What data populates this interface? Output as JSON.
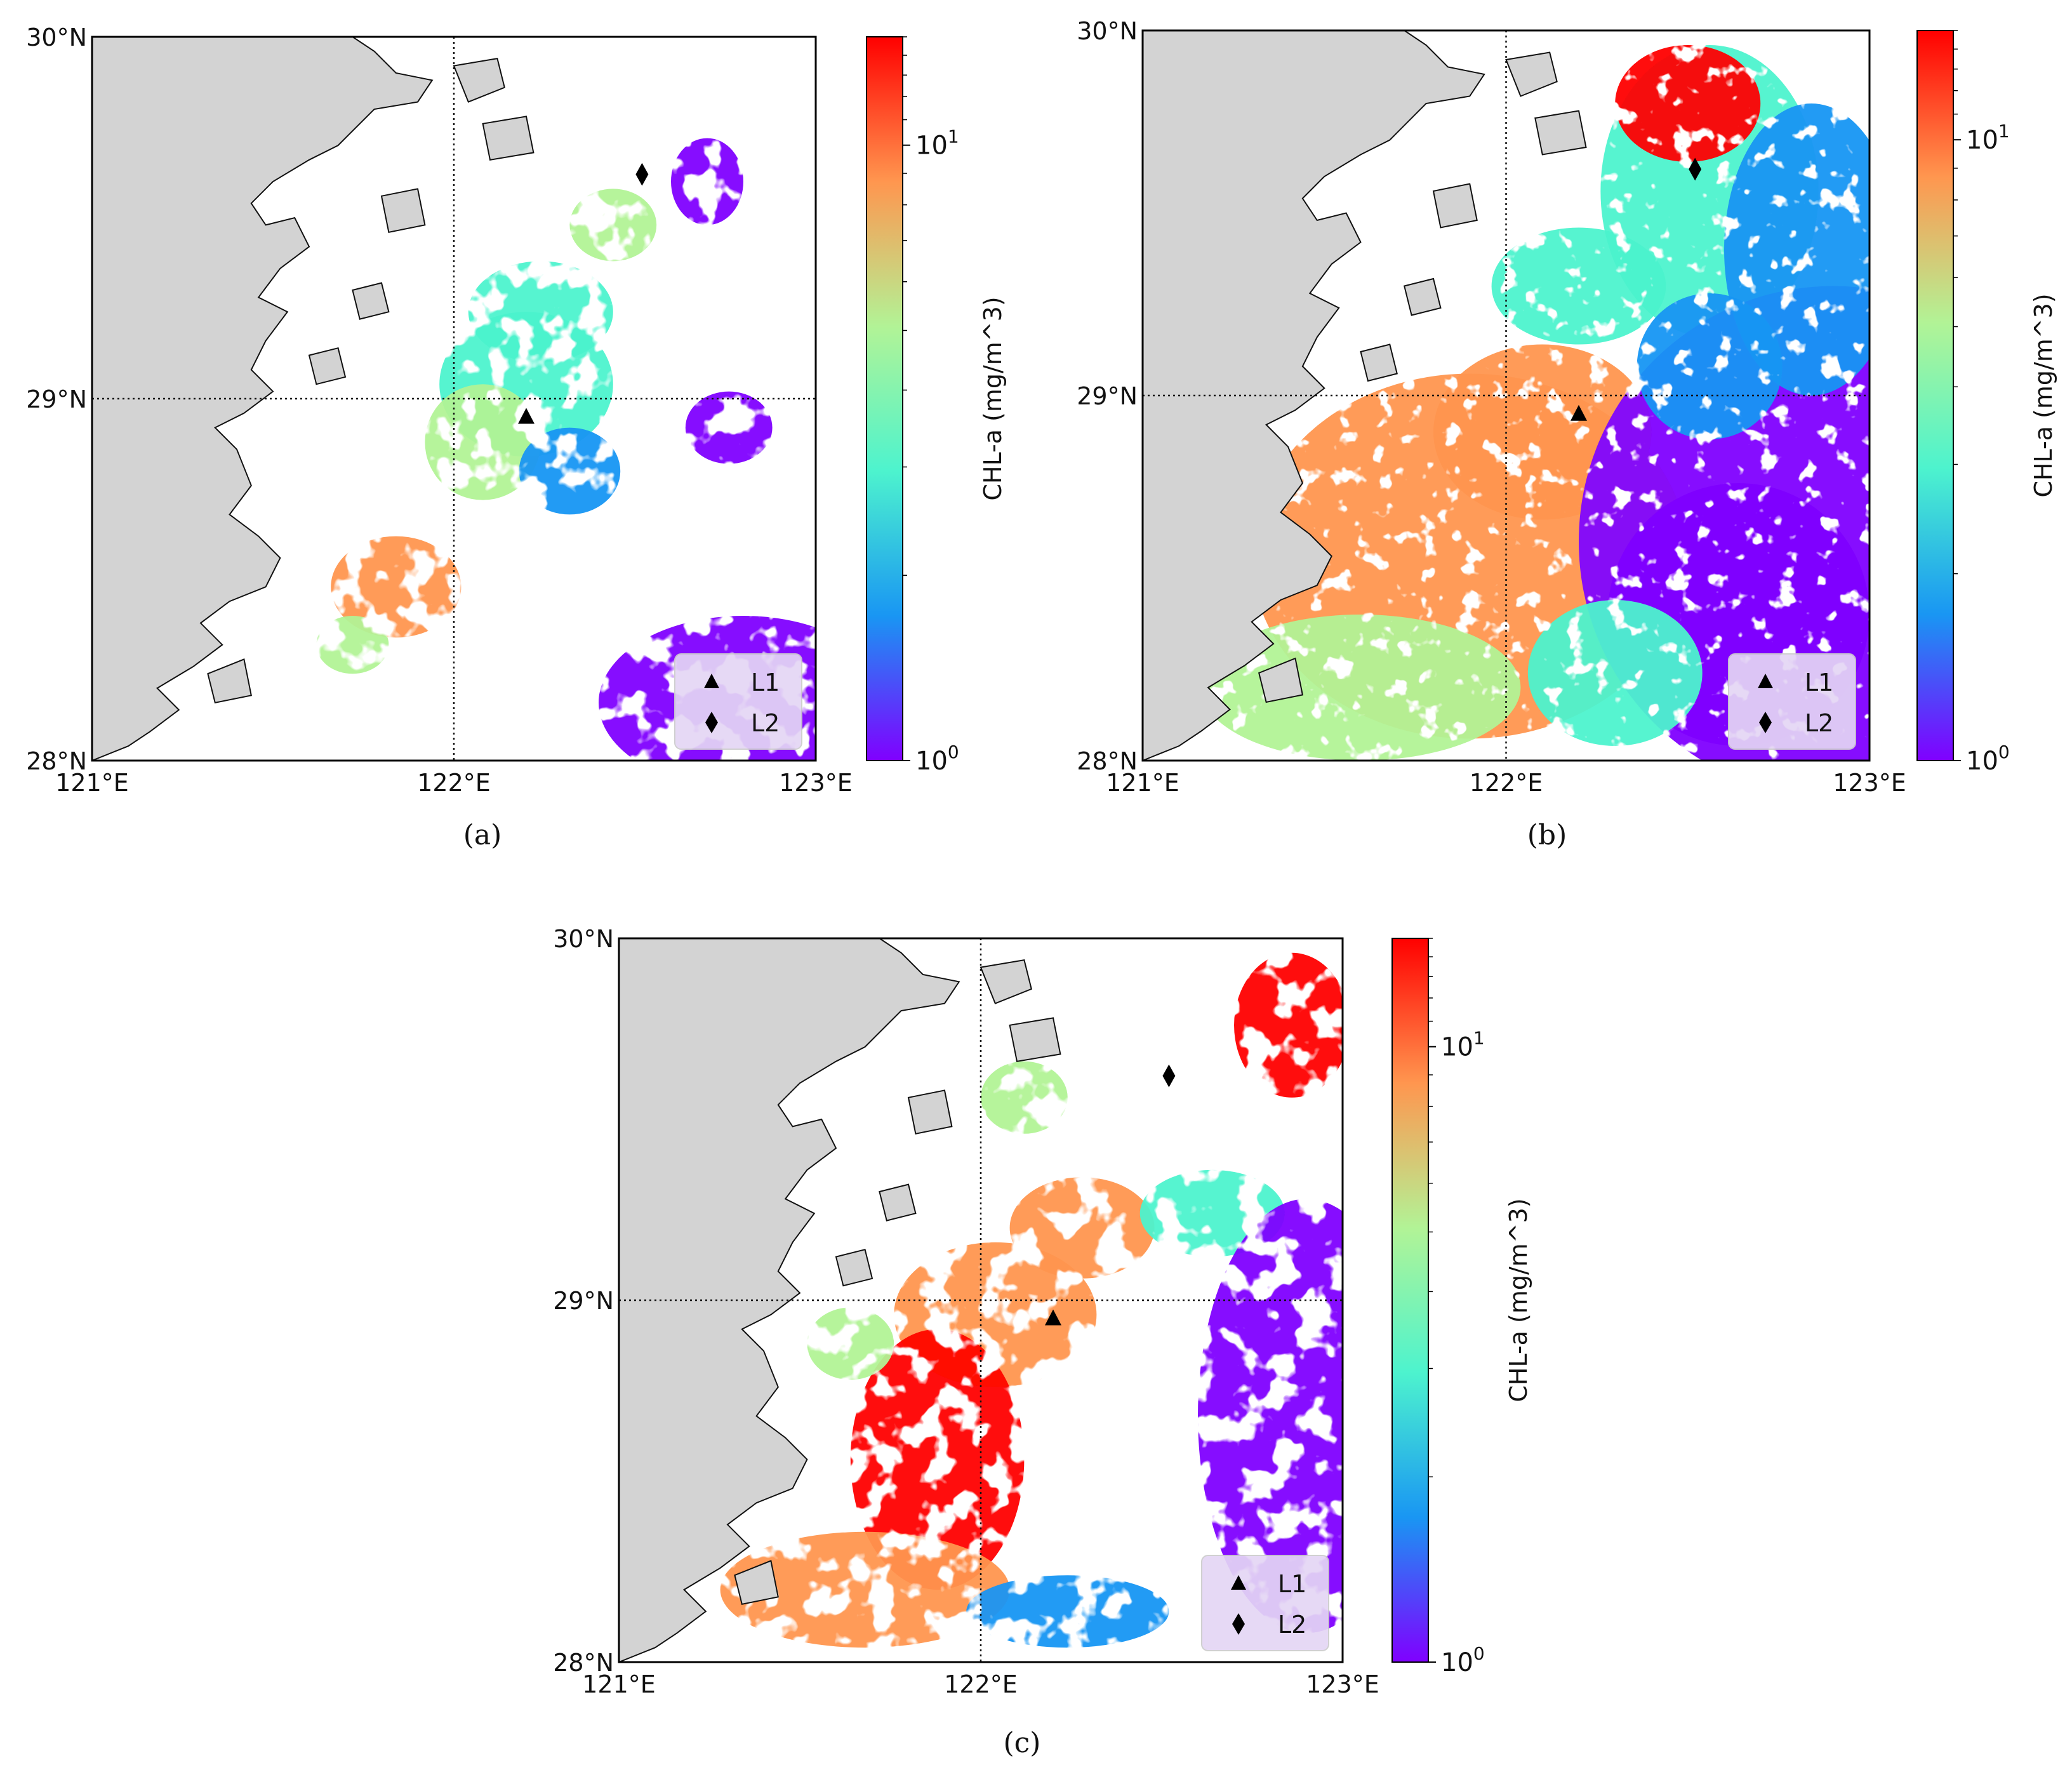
{
  "colors": {
    "land": "#d3d3d3",
    "water_missing": "#ffffff",
    "coast": "#111111",
    "grid": "#111111",
    "legend_bg": "#e4d6f5",
    "colormap": [
      "#8000ff",
      "#1996f3",
      "#4df3ce",
      "#b2f396",
      "#ff964f",
      "#ff0000"
    ]
  },
  "map_extent": {
    "lon": [
      121,
      123
    ],
    "lat": [
      28,
      30
    ]
  },
  "ticks": {
    "x": [
      {
        "value": 121,
        "label": "121°E"
      },
      {
        "value": 122,
        "label": "122°E"
      },
      {
        "value": 123,
        "label": "123°E"
      }
    ],
    "y": [
      {
        "value": 28,
        "label": "28°N"
      },
      {
        "value": 29,
        "label": "29°N"
      },
      {
        "value": 30,
        "label": "30°N"
      }
    ]
  },
  "gridlines": {
    "lon": [
      122
    ],
    "lat": [
      29
    ],
    "style": "dotted"
  },
  "colorbar": {
    "label": "CHL-a (mg/m^3)",
    "scale": "log",
    "range": [
      1,
      15
    ],
    "ticks": [
      {
        "value": 1,
        "base": "10",
        "exp": "0"
      },
      {
        "value": 10,
        "base": "10",
        "exp": "1"
      }
    ]
  },
  "legend": {
    "placement": "lower-right",
    "entries": [
      {
        "marker": "triangle",
        "label": "L1"
      },
      {
        "marker": "diamond",
        "label": "L2"
      }
    ]
  },
  "stations": [
    {
      "id": "L1",
      "marker": "triangle",
      "lon": 122.2,
      "lat": 28.95
    },
    {
      "id": "L2",
      "marker": "diamond",
      "lon": 122.52,
      "lat": 29.62
    }
  ],
  "panels": [
    {
      "label": "(a)",
      "letter": "a",
      "coverage": "sparse"
    },
    {
      "label": "(b)",
      "letter": "b",
      "coverage": "full"
    },
    {
      "label": "(c)",
      "letter": "c",
      "coverage": "partial"
    }
  ],
  "chart_data": {
    "type": "heatmap",
    "title": "",
    "xlabel": "",
    "ylabel": "",
    "x_range": [
      121,
      123
    ],
    "y_range": [
      28,
      30
    ],
    "color_scale": "log",
    "color_range": [
      1,
      15
    ],
    "colorbar_label": "CHL-a (mg/m^3)"
  }
}
